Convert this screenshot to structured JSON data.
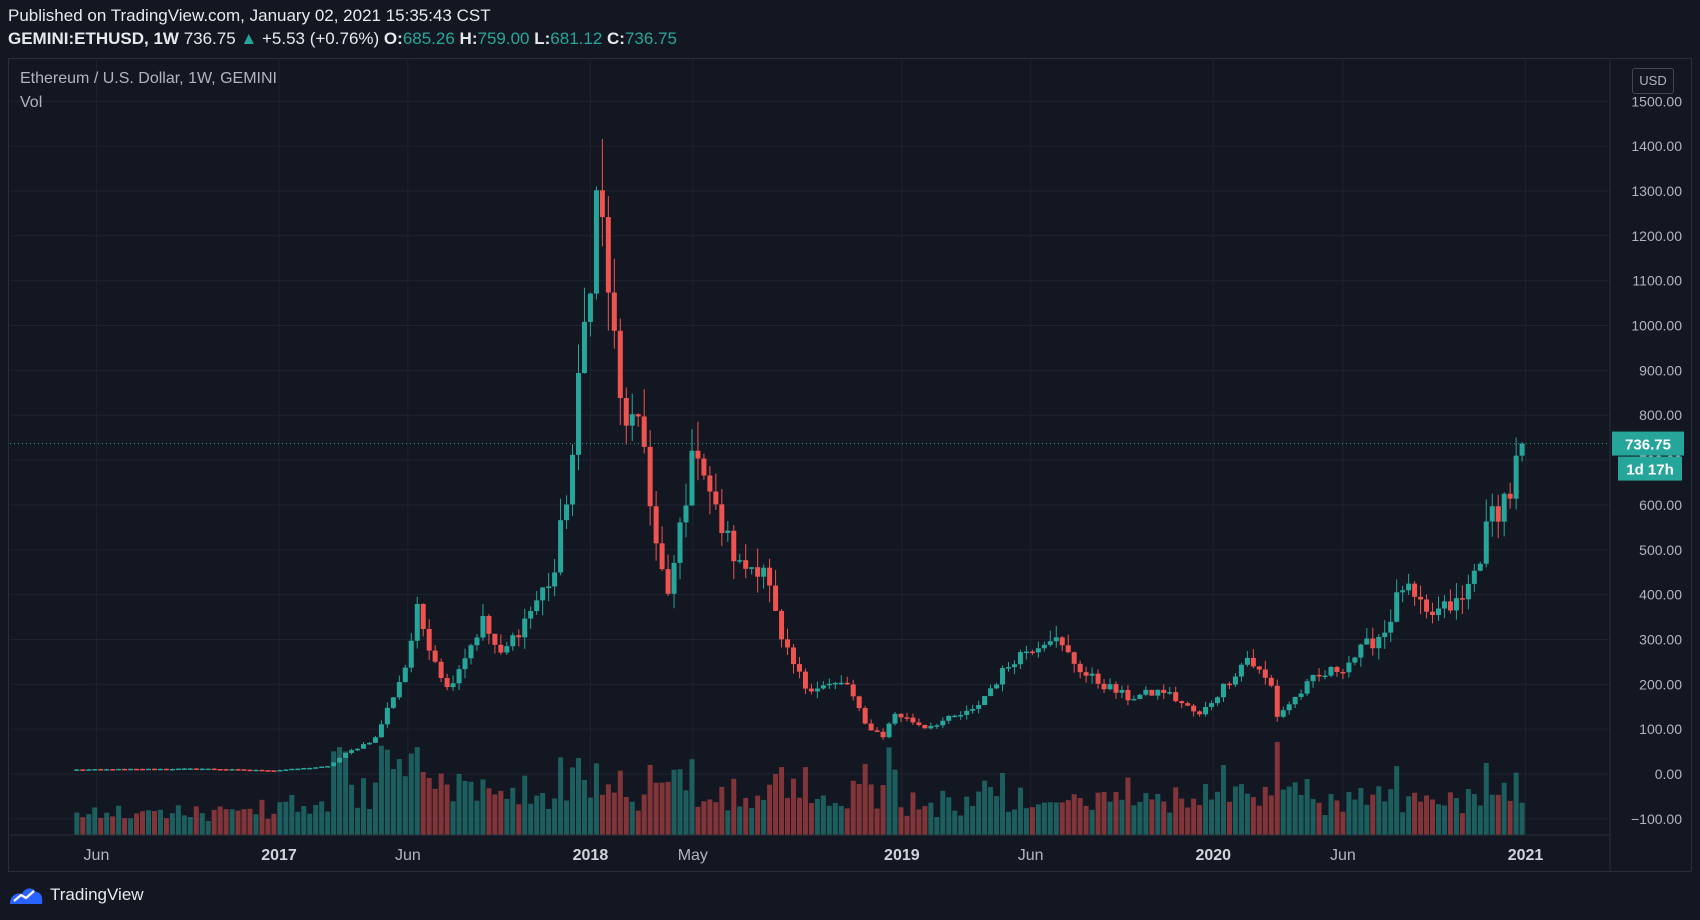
{
  "header": {
    "published": "Published on TradingView.com, January 02, 2021 15:35:43 CST",
    "symbol": "GEMINI:ETHUSD, 1W",
    "last": "736.75",
    "change": "+5.53 (+0.76%)",
    "o_label": "O:",
    "o_value": "685.26",
    "h_label": "H:",
    "h_value": "759.00",
    "l_label": "L:",
    "l_value": "681.12",
    "c_label": "C:",
    "c_value": "736.75"
  },
  "legend": {
    "title": "Ethereum / U.S. Dollar, 1W, GEMINI",
    "volume": "Vol"
  },
  "price_scale": {
    "currency": "USD",
    "last_price_tag": "736.75",
    "countdown_tag": "1d 17h"
  },
  "footer": {
    "brand": "TradingView"
  },
  "colors": {
    "background": "#131722",
    "up": "#26a69a",
    "down": "#ef5350",
    "grid": "#1f2330",
    "text": "#b2b5be"
  },
  "chart_data": {
    "type": "candlestick",
    "title": "Ethereum / U.S. Dollar, 1W, GEMINI",
    "timeframe": "1W",
    "y_ticks": [
      1500,
      1400,
      1300,
      1200,
      1100,
      1000,
      900,
      800,
      700,
      600,
      500,
      400,
      300,
      200,
      100,
      0,
      -100
    ],
    "ylim": [
      -130,
      1550
    ],
    "grid": true,
    "x_ticks": [
      {
        "label": "Jun",
        "date": "2016-06-01"
      },
      {
        "label": "2017",
        "date": "2017-01-01"
      },
      {
        "label": "Jun",
        "date": "2017-06-01"
      },
      {
        "label": "2018",
        "date": "2018-01-01"
      },
      {
        "label": "May",
        "date": "2018-05-01"
      },
      {
        "label": "2019",
        "date": "2019-01-01"
      },
      {
        "label": "Jun",
        "date": "2019-06-01"
      },
      {
        "label": "2020",
        "date": "2020-01-01"
      },
      {
        "label": "Jun",
        "date": "2020-06-01"
      },
      {
        "label": "2021",
        "date": "2021-01-01"
      }
    ],
    "x_range": [
      "2016-05-01",
      "2021-02-28"
    ],
    "last_close": 736.75,
    "key_points": [
      {
        "date": "2016-05-09",
        "close": 10
      },
      {
        "date": "2016-07-04",
        "close": 11
      },
      {
        "date": "2016-10-03",
        "close": 12
      },
      {
        "date": "2016-12-26",
        "close": 8
      },
      {
        "date": "2017-02-27",
        "close": 17
      },
      {
        "date": "2017-03-20",
        "close": 45
      },
      {
        "date": "2017-04-24",
        "close": 80
      },
      {
        "date": "2017-05-29",
        "close": 240
      },
      {
        "date": "2017-06-12",
        "close": 360
      },
      {
        "date": "2017-07-17",
        "close": 190
      },
      {
        "date": "2017-08-28",
        "close": 340
      },
      {
        "date": "2017-09-18",
        "close": 260
      },
      {
        "date": "2017-11-20",
        "close": 450
      },
      {
        "date": "2017-12-11",
        "close": 710
      },
      {
        "date": "2018-01-08",
        "close": 1280
      },
      {
        "date": "2018-01-15",
        "close": 1220
      },
      {
        "date": "2018-02-05",
        "close": 820
      },
      {
        "date": "2018-03-05",
        "close": 730
      },
      {
        "date": "2018-03-19",
        "close": 510
      },
      {
        "date": "2018-04-02",
        "close": 385
      },
      {
        "date": "2018-04-23",
        "close": 630
      },
      {
        "date": "2018-05-07",
        "close": 740
      },
      {
        "date": "2018-05-28",
        "close": 580
      },
      {
        "date": "2018-06-25",
        "close": 460
      },
      {
        "date": "2018-07-23",
        "close": 470
      },
      {
        "date": "2018-08-13",
        "close": 290
      },
      {
        "date": "2018-09-10",
        "close": 195
      },
      {
        "date": "2018-10-29",
        "close": 200
      },
      {
        "date": "2018-11-19",
        "close": 110
      },
      {
        "date": "2018-12-10",
        "close": 85
      },
      {
        "date": "2018-12-24",
        "close": 135
      },
      {
        "date": "2019-01-28",
        "close": 105
      },
      {
        "date": "2019-03-25",
        "close": 140
      },
      {
        "date": "2019-05-13",
        "close": 260
      },
      {
        "date": "2019-06-24",
        "close": 310
      },
      {
        "date": "2019-08-05",
        "close": 220
      },
      {
        "date": "2019-09-23",
        "close": 170
      },
      {
        "date": "2019-11-04",
        "close": 185
      },
      {
        "date": "2019-12-16",
        "close": 130
      },
      {
        "date": "2020-02-10",
        "close": 260
      },
      {
        "date": "2020-03-09",
        "close": 195
      },
      {
        "date": "2020-03-16",
        "close": 130
      },
      {
        "date": "2020-04-27",
        "close": 210
      },
      {
        "date": "2020-06-01",
        "close": 240
      },
      {
        "date": "2020-07-20",
        "close": 320
      },
      {
        "date": "2020-08-10",
        "close": 420
      },
      {
        "date": "2020-09-07",
        "close": 350
      },
      {
        "date": "2020-10-19",
        "close": 385
      },
      {
        "date": "2020-11-02",
        "close": 450
      },
      {
        "date": "2020-11-23",
        "close": 580
      },
      {
        "date": "2020-12-14",
        "close": 630
      },
      {
        "date": "2020-12-28",
        "close": 736.75
      }
    ]
  }
}
